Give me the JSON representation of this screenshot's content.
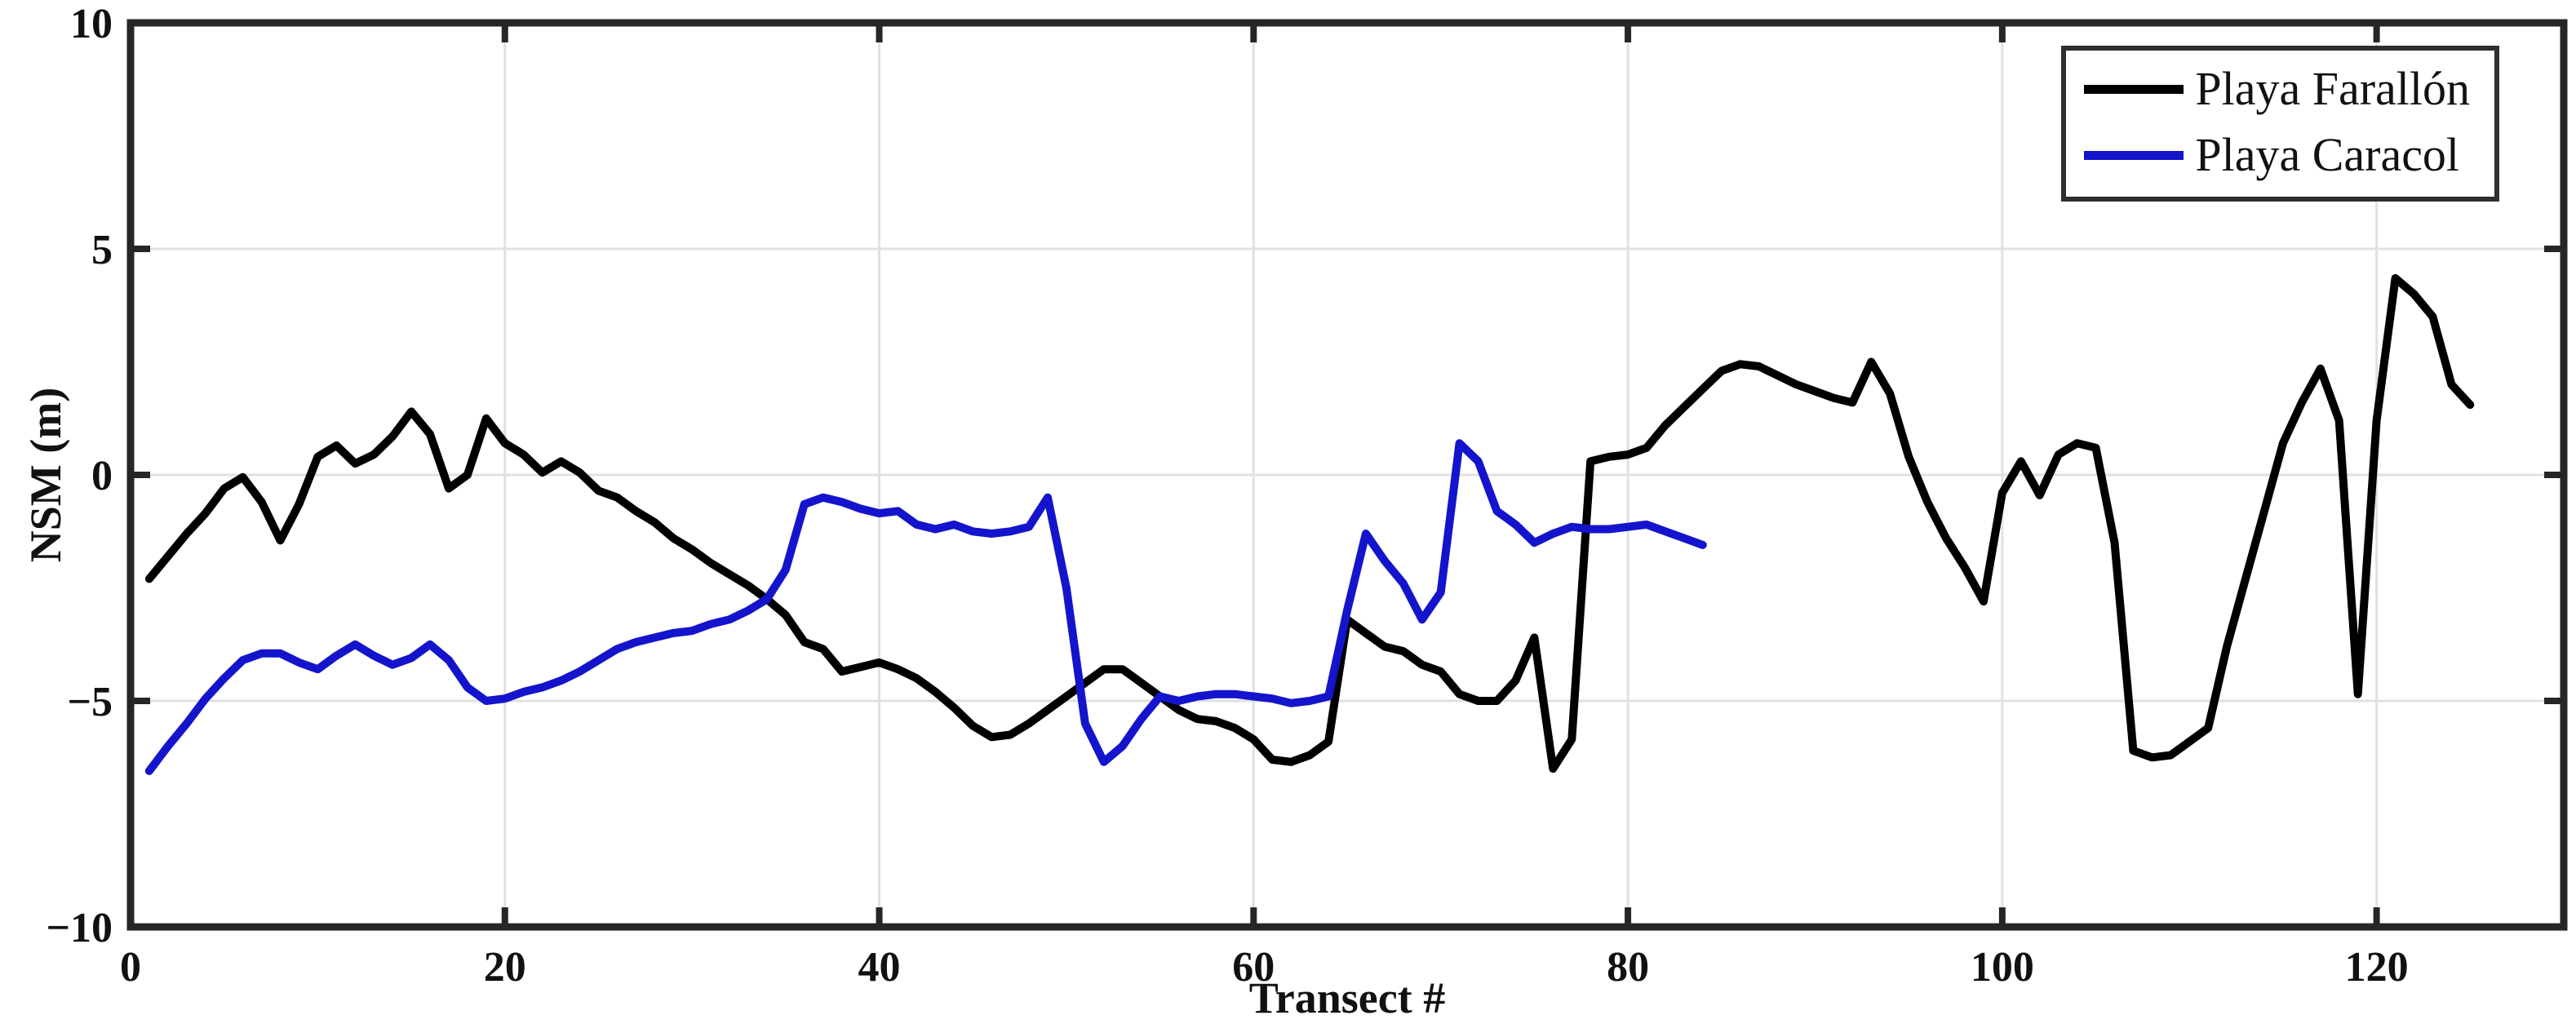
{
  "figure": {
    "background": "#ffffff",
    "axes_color": "#262626",
    "grid_color": "#e1e1e1",
    "text_color": "#111111",
    "x_label": "Transect #",
    "y_label": "NSM (m)"
  },
  "legend": {
    "position": "top-right",
    "items": [
      {
        "label": "Playa Farallón",
        "color": "#000000"
      },
      {
        "label": "Playa Caracol",
        "color": "#1414cc"
      }
    ]
  },
  "chart_data": {
    "type": "line",
    "title": "",
    "xlabel": "Transect #",
    "ylabel": "NSM (m)",
    "xlim": [
      0,
      130
    ],
    "ylim": [
      -10,
      10
    ],
    "xticks": [
      0,
      20,
      40,
      60,
      80,
      100,
      120
    ],
    "yticks": [
      -10,
      -5,
      0,
      5,
      10
    ],
    "grid": true,
    "legend_position": "top-right",
    "series": [
      {
        "name": "Playa Farallón",
        "color": "#000000",
        "x": [
          1,
          2,
          3,
          4,
          5,
          6,
          7,
          8,
          9,
          10,
          11,
          12,
          13,
          14,
          15,
          16,
          17,
          18,
          19,
          20,
          21,
          22,
          23,
          24,
          25,
          26,
          27,
          28,
          29,
          30,
          31,
          32,
          33,
          34,
          35,
          36,
          37,
          38,
          39,
          40,
          41,
          42,
          43,
          44,
          45,
          46,
          47,
          48,
          49,
          50,
          51,
          52,
          53,
          54,
          55,
          56,
          57,
          58,
          59,
          60,
          61,
          62,
          63,
          64,
          65,
          66,
          67,
          68,
          69,
          70,
          71,
          72,
          73,
          74,
          75,
          76,
          77,
          78,
          79,
          80,
          81,
          82,
          83,
          84,
          85,
          86,
          87,
          88,
          89,
          90,
          91,
          92,
          93,
          94,
          95,
          96,
          97,
          98,
          99,
          100,
          101,
          102,
          103,
          104,
          105,
          106,
          107,
          108,
          109,
          110,
          111,
          112,
          113,
          114,
          115,
          116,
          117,
          118,
          119,
          120,
          121,
          122,
          123,
          124,
          125
        ],
        "y": [
          -2.3,
          -1.8,
          -1.3,
          -0.85,
          -0.3,
          -0.05,
          -0.6,
          -1.45,
          -0.65,
          0.4,
          0.65,
          0.25,
          0.45,
          0.85,
          1.4,
          0.9,
          -0.3,
          0.0,
          1.25,
          0.7,
          0.45,
          0.05,
          0.3,
          0.05,
          -0.35,
          -0.5,
          -0.8,
          -1.05,
          -1.4,
          -1.65,
          -1.95,
          -2.2,
          -2.45,
          -2.75,
          -3.1,
          -3.7,
          -3.85,
          -4.35,
          -4.25,
          -4.15,
          -4.3,
          -4.5,
          -4.8,
          -5.15,
          -5.55,
          -5.8,
          -5.75,
          -5.5,
          -5.2,
          -4.9,
          -4.6,
          -4.3,
          -4.3,
          -4.6,
          -4.9,
          -5.2,
          -5.4,
          -5.45,
          -5.6,
          -5.85,
          -6.3,
          -6.35,
          -6.2,
          -5.9,
          -3.2,
          -3.5,
          -3.8,
          -3.9,
          -4.2,
          -4.35,
          -4.85,
          -5.0,
          -5.0,
          -4.55,
          -3.6,
          -6.5,
          -5.85,
          0.3,
          0.4,
          0.45,
          0.6,
          1.1,
          1.5,
          1.9,
          2.3,
          2.45,
          2.4,
          2.2,
          2.0,
          1.85,
          1.7,
          1.6,
          2.5,
          1.8,
          0.4,
          -0.6,
          -1.4,
          -2.05,
          -2.8,
          -0.4,
          0.3,
          -0.45,
          0.45,
          0.7,
          0.6,
          -1.5,
          -6.1,
          -6.25,
          -6.2,
          -5.9,
          -5.6,
          -3.8,
          -2.3,
          -0.8,
          0.7,
          1.6,
          2.35,
          1.2,
          -4.85,
          1.2,
          4.35,
          4.0,
          3.5,
          2.0,
          1.55
        ]
      },
      {
        "name": "Playa Caracol",
        "color": "#1414cc",
        "x": [
          1,
          2,
          3,
          4,
          5,
          6,
          7,
          8,
          9,
          10,
          11,
          12,
          13,
          14,
          15,
          16,
          17,
          18,
          19,
          20,
          21,
          22,
          23,
          24,
          25,
          26,
          27,
          28,
          29,
          30,
          31,
          32,
          33,
          34,
          35,
          36,
          37,
          38,
          39,
          40,
          41,
          42,
          43,
          44,
          45,
          46,
          47,
          48,
          49,
          50,
          51,
          52,
          53,
          54,
          55,
          56,
          57,
          58,
          59,
          60,
          61,
          62,
          63,
          64,
          65,
          66,
          67,
          68,
          69,
          70,
          71,
          72,
          73,
          74,
          75,
          76,
          77,
          78,
          79,
          80,
          81,
          82,
          83,
          84
        ],
        "y": [
          -6.55,
          -6.0,
          -5.5,
          -4.95,
          -4.5,
          -4.1,
          -3.95,
          -3.95,
          -4.15,
          -4.3,
          -4.0,
          -3.75,
          -4.0,
          -4.2,
          -4.05,
          -3.75,
          -4.1,
          -4.7,
          -5.0,
          -4.95,
          -4.8,
          -4.7,
          -4.55,
          -4.35,
          -4.1,
          -3.85,
          -3.7,
          -3.6,
          -3.5,
          -3.45,
          -3.3,
          -3.2,
          -3.0,
          -2.75,
          -2.1,
          -0.65,
          -0.5,
          -0.6,
          -0.75,
          -0.85,
          -0.8,
          -1.1,
          -1.2,
          -1.1,
          -1.25,
          -1.3,
          -1.25,
          -1.15,
          -0.5,
          -2.5,
          -5.5,
          -6.35,
          -6.0,
          -5.4,
          -4.9,
          -5.0,
          -4.9,
          -4.85,
          -4.85,
          -4.9,
          -4.95,
          -5.05,
          -5.0,
          -4.9,
          -3.0,
          -1.3,
          -1.9,
          -2.4,
          -3.2,
          -2.6,
          0.7,
          0.3,
          -0.8,
          -1.1,
          -1.5,
          -1.3,
          -1.15,
          -1.2,
          -1.2,
          -1.15,
          -1.1,
          -1.25,
          -1.4,
          -1.55
        ]
      }
    ]
  }
}
